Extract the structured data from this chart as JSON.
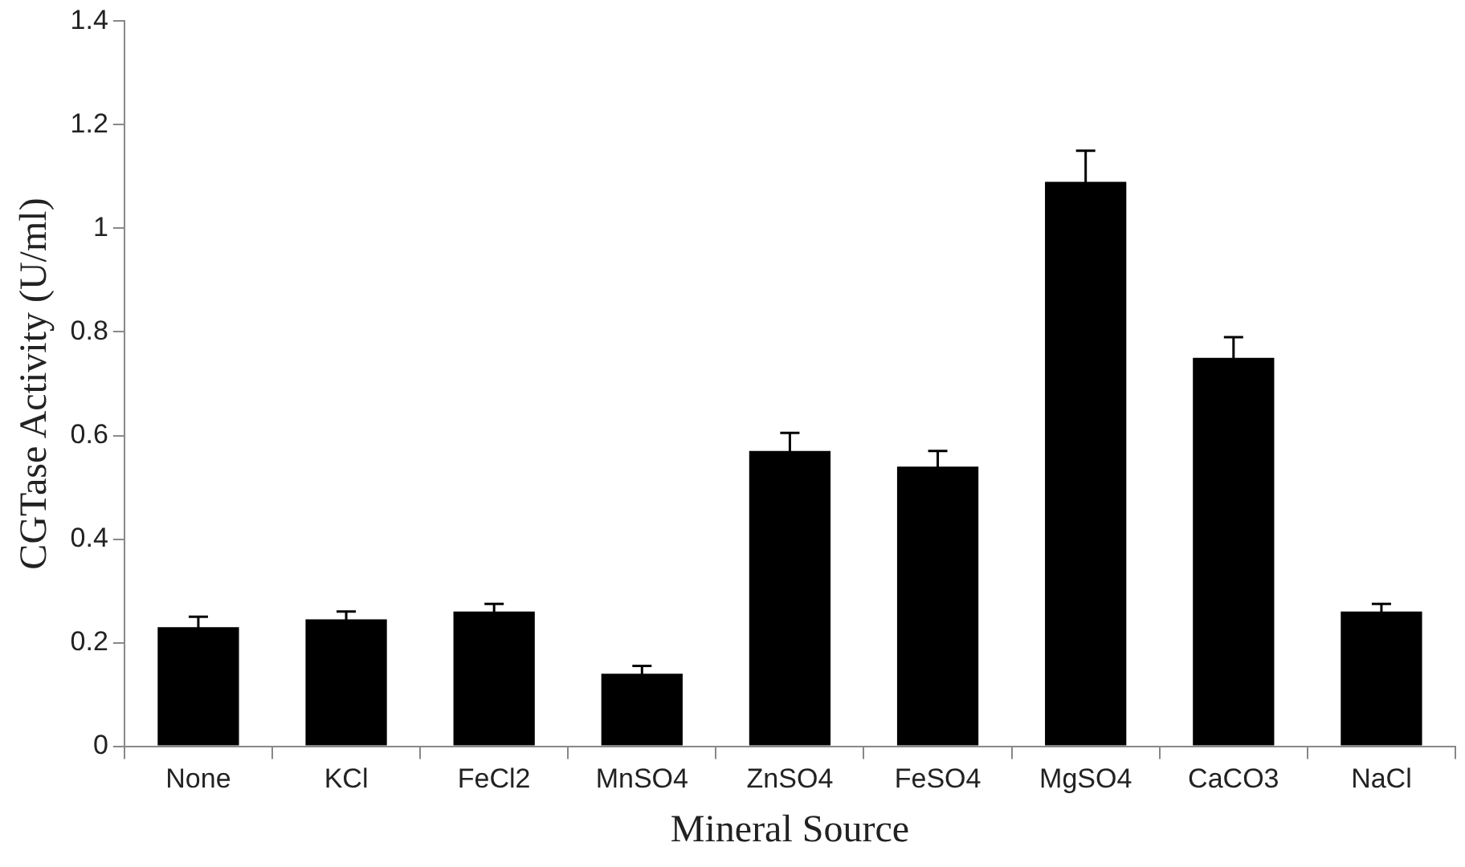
{
  "chart_data": {
    "type": "bar",
    "xlabel": "Mineral Source",
    "ylabel": "CGTase Activity (U/ml)",
    "categories": [
      "None",
      "KCl",
      "FeCl2",
      "MnSO4",
      "ZnSO4",
      "FeSO4",
      "MgSO4",
      "CaCO3",
      "NaCl"
    ],
    "series": [
      {
        "color": "#000000",
        "values": [
          0.23,
          0.245,
          0.26,
          0.14,
          0.57,
          0.54,
          1.09,
          0.75,
          0.26
        ],
        "errors": [
          0.02,
          0.015,
          0.015,
          0.015,
          0.035,
          0.03,
          0.06,
          0.04,
          0.015
        ]
      }
    ],
    "ylim": [
      0,
      1.4
    ],
    "yticks": [
      0,
      0.2,
      0.4,
      0.6,
      0.8,
      1,
      1.2,
      1.4
    ],
    "grid": false,
    "legend": false
  }
}
